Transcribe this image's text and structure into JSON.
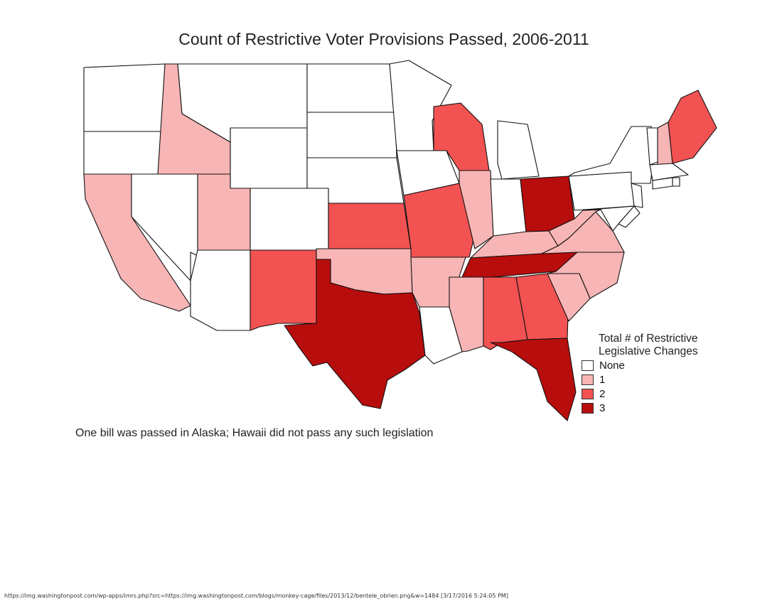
{
  "map": {
    "title": "Count of Restrictive Voter Provisions Passed, 2006-2011",
    "note": "One bill was passed in Alaska; Hawaii did not pass any such legislation"
  },
  "legend": {
    "title_line1": "Total # of Restrictive",
    "title_line2": "Legislative Changes",
    "items": [
      {
        "label": "None",
        "count": 0,
        "color": "#ffffff"
      },
      {
        "label": "1",
        "count": 1,
        "color": "#f8b5b5"
      },
      {
        "label": "2",
        "count": 2,
        "color": "#f25252"
      },
      {
        "label": "3",
        "count": 3,
        "color": "#b70d0d"
      }
    ]
  },
  "states": {
    "Washington": 0,
    "Oregon": 0,
    "Idaho": 1,
    "Montana": 0,
    "Wyoming": 0,
    "California": 1,
    "Nevada": 0,
    "Utah": 1,
    "Colorado": 0,
    "Arizona": 0,
    "New Mexico": 2,
    "North Dakota": 0,
    "South Dakota": 0,
    "Nebraska": 0,
    "Kansas": 2,
    "Oklahoma": 1,
    "Texas": 3,
    "Minnesota": 0,
    "Iowa": 0,
    "Missouri": 2,
    "Arkansas": 1,
    "Louisiana": 0,
    "Wisconsin": 2,
    "Illinois": 1,
    "Michigan": 0,
    "Indiana": 0,
    "Ohio": 3,
    "Kentucky": 1,
    "Tennessee": 3,
    "Mississippi": 1,
    "Alabama": 2,
    "Georgia": 2,
    "Florida": 3,
    "South Carolina": 1,
    "North Carolina": 1,
    "Virginia": 1,
    "West Virginia": 1,
    "Pennsylvania": 0,
    "New York": 0,
    "Maryland": 0,
    "Delaware": 0,
    "New Jersey": 0,
    "Vermont": 0,
    "New Hampshire": 1,
    "Maine": 2,
    "Massachusetts": 0,
    "Rhode Island": 0,
    "Connecticut": 0
  },
  "source_footer": "https://img.washingtonpost.com/wp-apps/imrs.php?src=https://img.washingtonpost.com/blogs/monkey-cage/files/2013/12/bentele_obrien.png&w=1484 [3/17/2016 5:24:05 PM]"
}
